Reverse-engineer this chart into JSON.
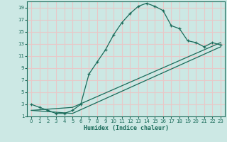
{
  "xlabel": "Humidex (Indice chaleur)",
  "background_color": "#cce8e4",
  "grid_color": "#e8c8c8",
  "line_color": "#1a6b5a",
  "xlim": [
    -0.5,
    23.5
  ],
  "ylim": [
    1,
    20
  ],
  "xticks": [
    0,
    1,
    2,
    3,
    4,
    5,
    6,
    7,
    8,
    9,
    10,
    11,
    12,
    13,
    14,
    15,
    16,
    17,
    18,
    19,
    20,
    21,
    22,
    23
  ],
  "yticks": [
    1,
    3,
    5,
    7,
    9,
    11,
    13,
    15,
    17,
    19
  ],
  "curve1_x": [
    0,
    1,
    2,
    3,
    4,
    5,
    6,
    7,
    8,
    9,
    10,
    11,
    12,
    13,
    14,
    15,
    16,
    17,
    18,
    19,
    20,
    21,
    22,
    23
  ],
  "curve1_y": [
    3,
    2.5,
    2,
    1.5,
    1.5,
    2,
    3,
    8,
    10,
    12,
    14.5,
    16.5,
    18,
    19.2,
    19.7,
    19.2,
    18.5,
    16,
    15.5,
    13.5,
    13.2,
    12.5,
    13.2,
    12.8
  ],
  "curve2_x": [
    0,
    5,
    23
  ],
  "curve2_y": [
    2,
    1.5,
    12.5
  ],
  "curve3_x": [
    0,
    5,
    23
  ],
  "curve3_y": [
    2,
    2.5,
    13.2
  ]
}
